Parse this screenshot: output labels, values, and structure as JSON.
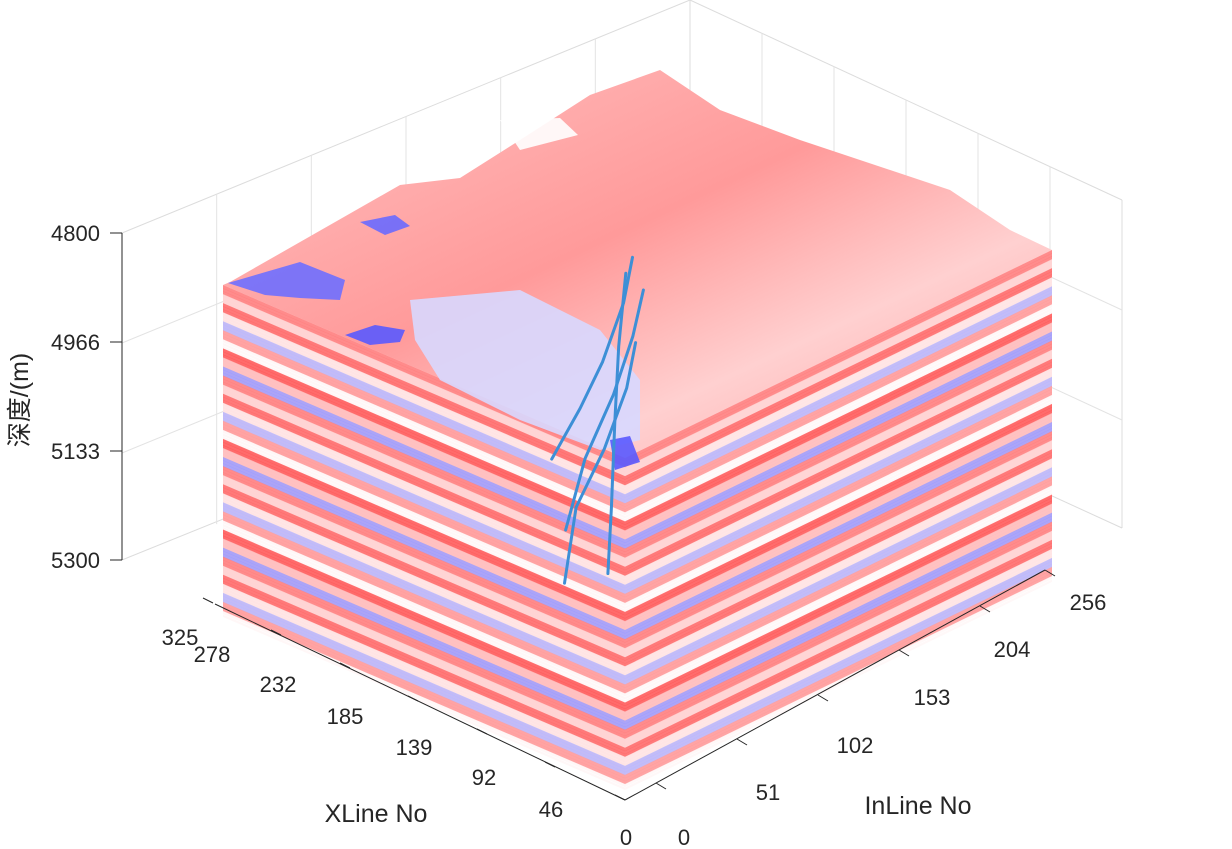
{
  "chart_data": {
    "type": "volume-3d-seismic",
    "title": "",
    "xlabel": "XLine No",
    "ylabel": "InLine No",
    "zlabel": "深度/(m)",
    "xline_ticks": [
      "0",
      "46",
      "92",
      "139",
      "185",
      "232",
      "278",
      "325"
    ],
    "inline_ticks": [
      "0",
      "51",
      "102",
      "153",
      "204",
      "256"
    ],
    "depth_ticks": [
      "4800",
      "4966",
      "5133",
      "5300"
    ],
    "xline_range": [
      0,
      340
    ],
    "inline_range": [
      0,
      280
    ],
    "depth_range": [
      4800,
      5300
    ],
    "grid": true,
    "colormap": [
      "#3b3bff",
      "#ffffff",
      "#ff2a2a"
    ],
    "fault_color": "#3d8fd6",
    "faults": [
      {
        "name": "",
        "points": [
          [
            120,
            100,
            4830
          ],
          [
            125,
            98,
            4900
          ],
          [
            140,
            95,
            5000
          ],
          [
            160,
            92,
            5100
          ],
          [
            175,
            96,
            5230
          ]
        ]
      },
      {
        "name": "",
        "points": [
          [
            165,
            140,
            4830
          ],
          [
            170,
            137,
            4900
          ],
          [
            180,
            132,
            4990
          ],
          [
            195,
            125,
            5090
          ],
          [
            205,
            120,
            5200
          ]
        ]
      },
      {
        "name": "",
        "points": [
          [
            200,
            160,
            4830
          ],
          [
            205,
            158,
            4900
          ],
          [
            215,
            152,
            4990
          ],
          [
            225,
            145,
            5060
          ],
          [
            240,
            138,
            5140
          ]
        ]
      },
      {
        "name": "",
        "points": [
          [
            225,
            175,
            4890
          ],
          [
            222,
            168,
            4990
          ],
          [
            215,
            160,
            5090
          ],
          [
            205,
            150,
            5200
          ],
          [
            195,
            140,
            5280
          ]
        ]
      }
    ]
  }
}
